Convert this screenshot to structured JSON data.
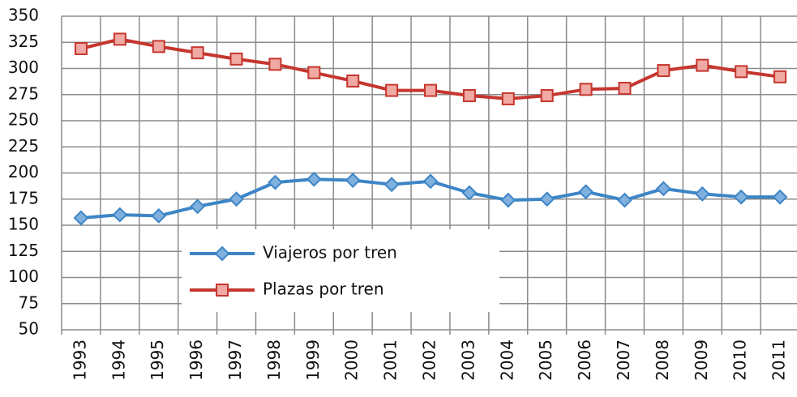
{
  "chart_data": {
    "type": "line",
    "categories": [
      "1993",
      "1994",
      "1995",
      "1996",
      "1997",
      "1998",
      "1999",
      "2000",
      "2001",
      "2002",
      "2003",
      "2004",
      "2005",
      "2006",
      "2007",
      "2008",
      "2009",
      "2010",
      "2011"
    ],
    "series": [
      {
        "name": "Viajeros por tren",
        "color": "#3d85c6",
        "marker": "diamond",
        "marker_fill": "#7fb0de",
        "values": [
          157,
          160,
          159,
          168,
          175,
          191,
          194,
          193,
          189,
          192,
          181,
          174,
          175,
          182,
          174,
          185,
          180,
          177,
          177
        ]
      },
      {
        "name": "Plazas por tren",
        "color": "#c5362f",
        "marker": "square",
        "marker_fill": "#f0a9a3",
        "values": [
          319,
          328,
          321,
          315,
          309,
          304,
          296,
          288,
          279,
          279,
          274,
          271,
          274,
          280,
          281,
          298,
          303,
          297,
          292
        ]
      }
    ],
    "ylim": [
      50,
      350
    ],
    "yticks": [
      50,
      75,
      100,
      125,
      150,
      175,
      200,
      225,
      250,
      275,
      300,
      325,
      350
    ],
    "grid": true,
    "legend": "lower center"
  }
}
